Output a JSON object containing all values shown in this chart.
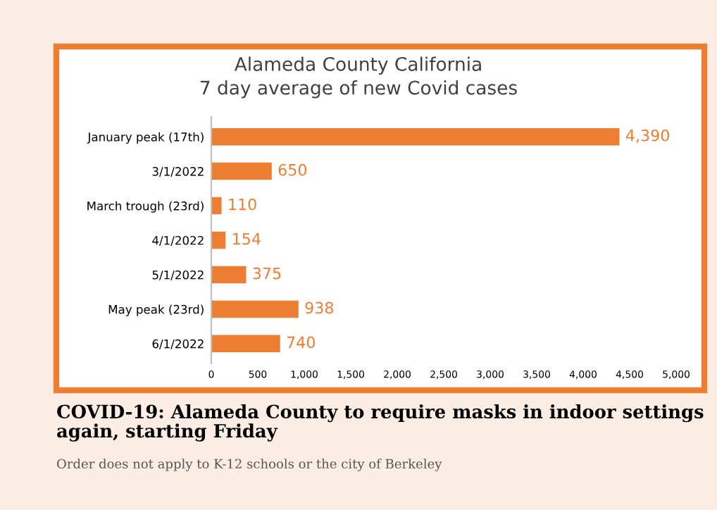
{
  "chart_data": {
    "type": "bar",
    "orientation": "horizontal",
    "title": "Alameda County California\n7 day average of new Covid cases",
    "categories": [
      "January peak (17th)",
      "3/1/2022",
      "March trough (23rd)",
      "4/1/2022",
      "5/1/2022",
      "May peak (23rd)",
      "6/1/2022"
    ],
    "values": [
      4390,
      650,
      110,
      154,
      375,
      938,
      740
    ],
    "value_labels": [
      "4,390",
      "650",
      "110",
      "154",
      "375",
      "938",
      "740"
    ],
    "color": "#ed7d31",
    "xlim": [
      0,
      5000
    ],
    "xticks": [
      {
        "value": 0,
        "label": "0"
      },
      {
        "value": 500,
        "label": "500"
      },
      {
        "value": 1000,
        "label": "1,000"
      },
      {
        "value": 1500,
        "label": "1,500"
      },
      {
        "value": 2000,
        "label": "2,000"
      },
      {
        "value": 2500,
        "label": "2,500"
      },
      {
        "value": 3000,
        "label": "3,000"
      },
      {
        "value": 3500,
        "label": "3,500"
      },
      {
        "value": 4000,
        "label": "4,000"
      },
      {
        "value": 4500,
        "label": "4,500"
      },
      {
        "value": 5000,
        "label": "5,000"
      }
    ],
    "grid": false,
    "annotations": [
      "COVID-19: Alameda County to require masks in indoor settings again, starting Friday",
      "Order does not apply to K-12 schools or the city of Berkeley"
    ]
  }
}
